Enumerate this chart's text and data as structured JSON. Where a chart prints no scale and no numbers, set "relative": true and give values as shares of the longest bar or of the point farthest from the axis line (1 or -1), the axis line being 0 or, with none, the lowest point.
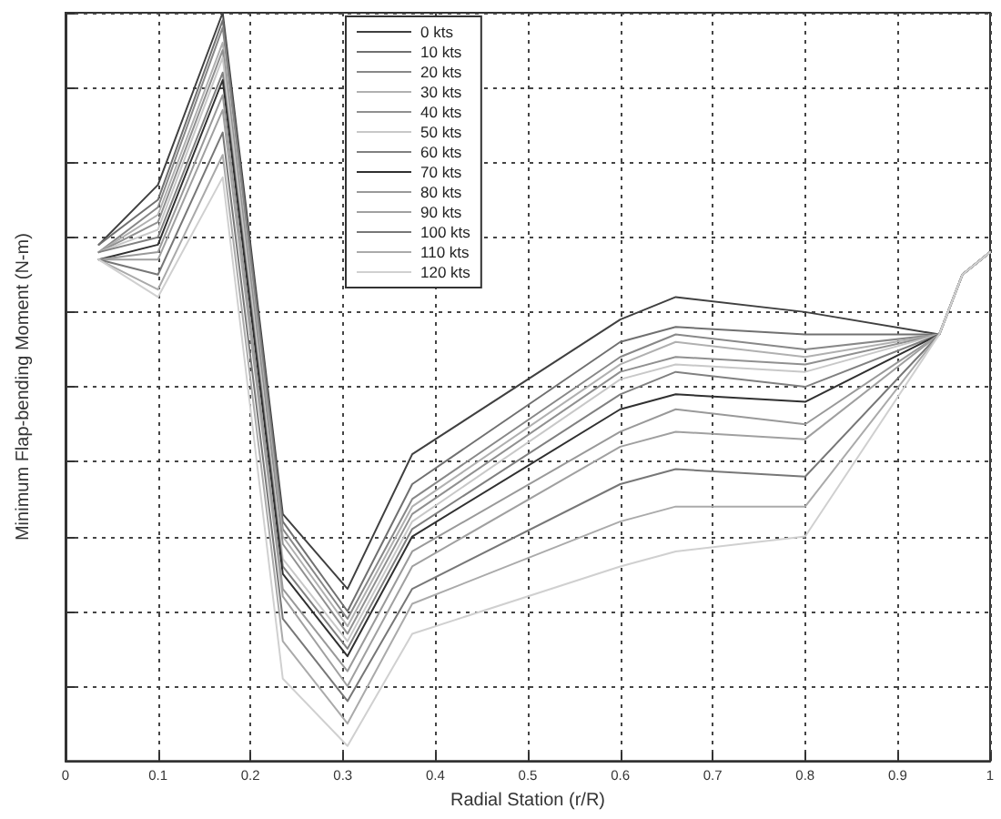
{
  "chart_data": {
    "type": "line",
    "xlabel": "Radial Station (r/R)",
    "ylabel": "Minimum Flap-bending Moment (N-m)",
    "relative": true,
    "x": [
      0.036,
      0.1,
      0.17,
      0.235,
      0.305,
      0.375,
      0.6,
      0.66,
      0.8,
      0.945,
      0.97,
      1.0
    ],
    "xlim": [
      0,
      1
    ],
    "xticks": [
      0,
      0.1,
      0.2,
      0.3,
      0.4,
      0.5,
      0.6,
      0.7,
      0.8,
      0.9,
      1
    ],
    "tick_labels": "x",
    "grid": true,
    "legend": "top",
    "marker": "none",
    "line_style": "solid",
    "series": [
      {
        "name": "0 kts",
        "color": "#404040",
        "values": [
          0.69,
          0.77,
          1.0,
          0.33,
          0.23,
          0.41,
          0.59,
          0.62,
          0.6,
          0.57,
          0.65,
          0.68
        ]
      },
      {
        "name": "10 kts",
        "color": "#707070",
        "values": [
          0.69,
          0.75,
          0.99,
          0.32,
          0.2,
          0.37,
          0.56,
          0.58,
          0.57,
          0.57,
          0.65,
          0.68
        ]
      },
      {
        "name": "20 kts",
        "color": "#888888",
        "values": [
          0.68,
          0.74,
          0.98,
          0.31,
          0.19,
          0.35,
          0.54,
          0.57,
          0.55,
          0.57,
          0.65,
          0.68
        ]
      },
      {
        "name": "30 kts",
        "color": "#b0b0b0",
        "values": [
          0.68,
          0.73,
          0.96,
          0.3,
          0.18,
          0.34,
          0.53,
          0.56,
          0.54,
          0.57,
          0.65,
          0.68
        ]
      },
      {
        "name": "40 kts",
        "color": "#909090",
        "values": [
          0.68,
          0.72,
          0.95,
          0.29,
          0.17,
          0.33,
          0.52,
          0.54,
          0.53,
          0.57,
          0.65,
          0.68
        ]
      },
      {
        "name": "50 kts",
        "color": "#c8c8c8",
        "values": [
          0.68,
          0.71,
          0.94,
          0.27,
          0.16,
          0.32,
          0.51,
          0.53,
          0.52,
          0.57,
          0.65,
          0.68
        ]
      },
      {
        "name": "60 kts",
        "color": "#808080",
        "values": [
          0.68,
          0.7,
          0.92,
          0.26,
          0.15,
          0.31,
          0.49,
          0.52,
          0.5,
          0.57,
          0.65,
          0.68
        ]
      },
      {
        "name": "70 kts",
        "color": "#303030",
        "values": [
          0.67,
          0.69,
          0.91,
          0.25,
          0.14,
          0.3,
          0.47,
          0.49,
          0.48,
          0.57,
          0.65,
          0.68
        ]
      },
      {
        "name": "80 kts",
        "color": "#999999",
        "values": [
          0.67,
          0.68,
          0.89,
          0.23,
          0.12,
          0.28,
          0.44,
          0.47,
          0.45,
          0.57,
          0.65,
          0.68
        ]
      },
      {
        "name": "90 kts",
        "color": "#a0a0a0",
        "values": [
          0.67,
          0.67,
          0.87,
          0.22,
          0.1,
          0.26,
          0.42,
          0.44,
          0.43,
          0.57,
          0.65,
          0.68
        ]
      },
      {
        "name": "100 kts",
        "color": "#777777",
        "values": [
          0.67,
          0.65,
          0.84,
          0.19,
          0.08,
          0.23,
          0.37,
          0.39,
          0.38,
          0.57,
          0.65,
          0.68
        ]
      },
      {
        "name": "110 kts",
        "color": "#aaaaaa",
        "values": [
          0.67,
          0.63,
          0.81,
          0.16,
          0.05,
          0.21,
          0.32,
          0.34,
          0.34,
          0.57,
          0.65,
          0.68
        ]
      },
      {
        "name": "120 kts",
        "color": "#d0d0d0",
        "values": [
          0.67,
          0.62,
          0.78,
          0.11,
          0.02,
          0.17,
          0.26,
          0.28,
          0.3,
          0.57,
          0.65,
          0.68
        ]
      }
    ]
  }
}
